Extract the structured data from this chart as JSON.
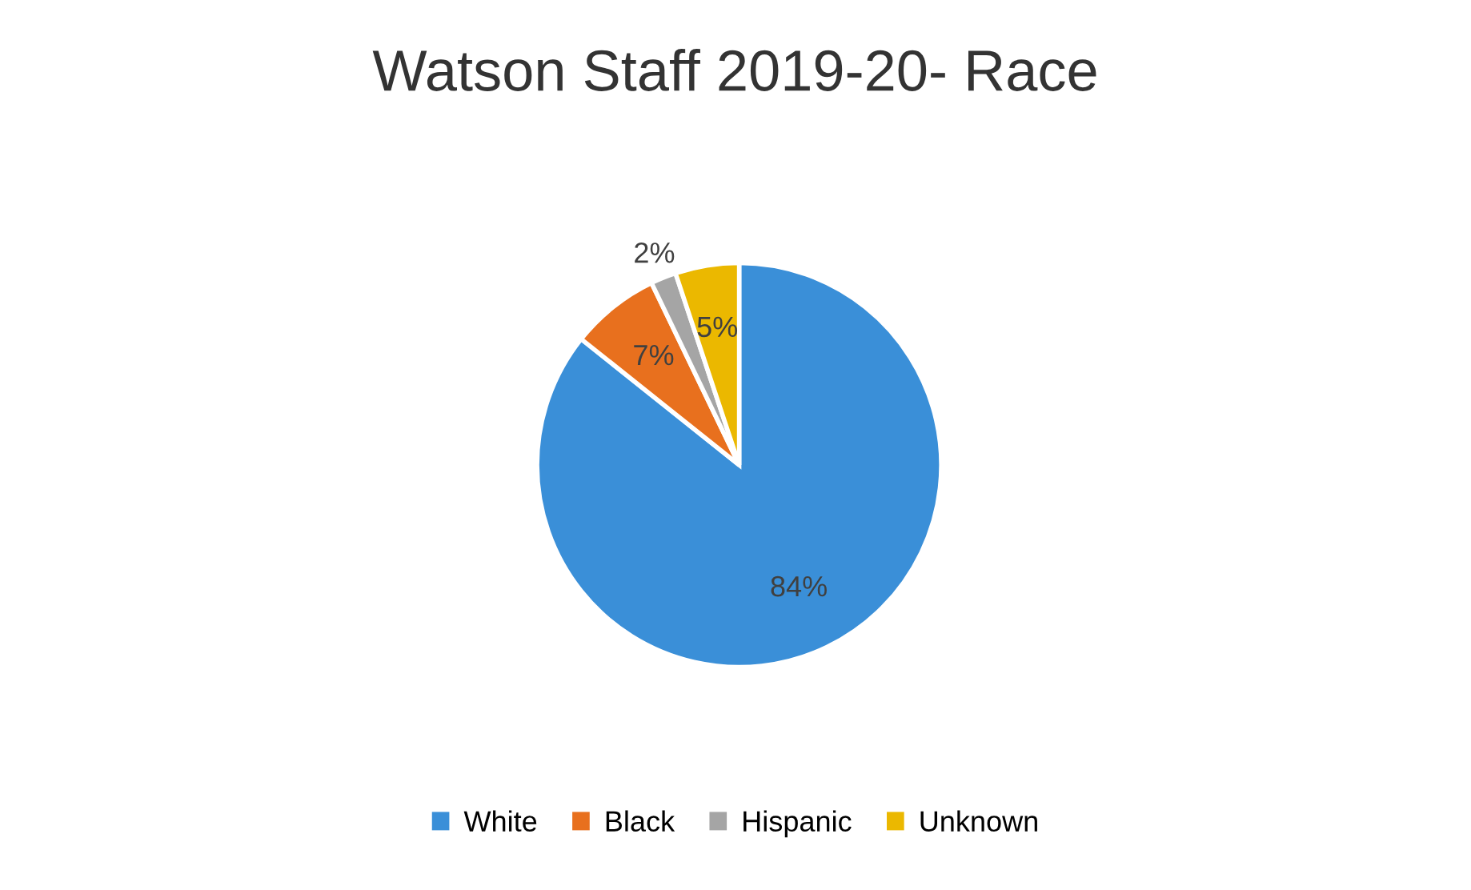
{
  "chart_data": {
    "type": "pie",
    "title": "Watson Staff 2019-20- Race",
    "categories": [
      "White",
      "Black",
      "Hispanic",
      "Unknown"
    ],
    "values": [
      84,
      7,
      2,
      5
    ],
    "colors": [
      "#3a8fd8",
      "#e8701e",
      "#a5a5a5",
      "#ebb800"
    ],
    "value_labels": [
      "84%",
      "7%",
      "2%",
      "5%"
    ],
    "legend": "bottom"
  }
}
